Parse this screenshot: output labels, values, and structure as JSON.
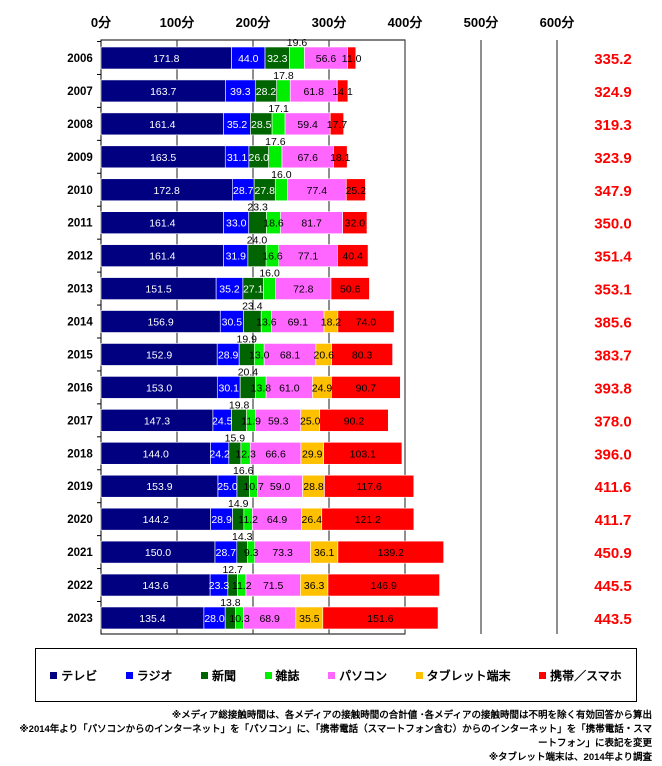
{
  "chart_data": {
    "type": "bar",
    "orientation": "horizontal",
    "stacked": true,
    "xlabel": "",
    "ylabel": "",
    "xlim": [
      0,
      600
    ],
    "x_ticks": [
      "0分",
      "100分",
      "200分",
      "300分",
      "400分",
      "500分",
      "600分"
    ],
    "grid": true,
    "legend_placement": "bottom",
    "categories": [
      "2006",
      "2007",
      "2008",
      "2009",
      "2010",
      "2011",
      "2012",
      "2013",
      "2014",
      "2015",
      "2016",
      "2017",
      "2018",
      "2019",
      "2020",
      "2021",
      "2022",
      "2023"
    ],
    "series": [
      {
        "name": "テレビ",
        "color": "#000080",
        "label_color": "#ffffff",
        "values": [
          171.8,
          163.7,
          161.4,
          163.5,
          172.8,
          161.4,
          161.4,
          151.5,
          156.9,
          152.9,
          153.0,
          147.3,
          144.0,
          153.9,
          144.2,
          150.0,
          143.6,
          135.4
        ]
      },
      {
        "name": "ラジオ",
        "color": "#0000ff",
        "label_color": "#ffffff",
        "values": [
          44.0,
          39.3,
          35.2,
          31.1,
          28.7,
          33.0,
          31.9,
          35.2,
          30.5,
          28.9,
          30.1,
          24.5,
          24.2,
          25.0,
          28.9,
          28.7,
          23.3,
          28.0
        ]
      },
      {
        "name": "新聞",
        "color": "#006400",
        "label_color": "#ffffff",
        "values": [
          32.3,
          28.2,
          28.5,
          26.0,
          27.8,
          23.3,
          24.0,
          27.1,
          23.4,
          19.9,
          20.4,
          19.8,
          15.9,
          16.6,
          14.9,
          14.3,
          12.7,
          13.8
        ]
      },
      {
        "name": "雑誌",
        "color": "#00ee00",
        "label_color": "#000000",
        "values": [
          19.6,
          17.8,
          17.1,
          17.6,
          16.0,
          18.6,
          16.6,
          16.0,
          13.6,
          13.0,
          13.8,
          11.9,
          12.3,
          10.7,
          11.2,
          9.3,
          11.2,
          10.3
        ]
      },
      {
        "name": "パソコン",
        "color": "#ff66ff",
        "label_color": "#000000",
        "values": [
          56.6,
          61.8,
          59.4,
          67.6,
          77.4,
          81.7,
          77.1,
          72.8,
          69.1,
          68.1,
          61.0,
          59.3,
          66.6,
          59.0,
          64.9,
          73.3,
          71.5,
          68.9
        ]
      },
      {
        "name": "タブレット端末",
        "color": "#ffc000",
        "label_color": "#000000",
        "values": [
          null,
          null,
          null,
          null,
          null,
          null,
          null,
          null,
          18.2,
          20.6,
          24.9,
          25.0,
          29.9,
          28.8,
          26.4,
          36.1,
          36.3,
          35.5
        ]
      },
      {
        "name": "携帯／スマホ",
        "color": "#ff0000",
        "label_color": "#000000",
        "values": [
          11.0,
          14.1,
          17.7,
          18.1,
          25.2,
          32.0,
          40.4,
          50.6,
          74.0,
          80.3,
          90.7,
          90.2,
          103.1,
          117.6,
          121.2,
          139.2,
          146.9,
          151.6
        ]
      }
    ],
    "totals": [
      "335.2",
      "324.9",
      "319.3",
      "323.9",
      "347.9",
      "350.0",
      "351.4",
      "353.1",
      "385.6",
      "383.7",
      "393.8",
      "378.0",
      "396.0",
      "411.6",
      "411.7",
      "450.9",
      "445.5",
      "443.5"
    ],
    "total_color": "#ff0000",
    "notes": [
      "※メディア総接触時間は、各メディアの接触時間の合計値 ･各メディアの接触時間は不明を除く有効回答から算出",
      "※2014年より「パソコンからのインターネット」を「パソコン」に、「携帯電話（スマートフォン含む）からのインターネット」を「携帯電話・スマートフォン」に表記を変更",
      "※タブレット端末は、2014年より調査"
    ]
  }
}
